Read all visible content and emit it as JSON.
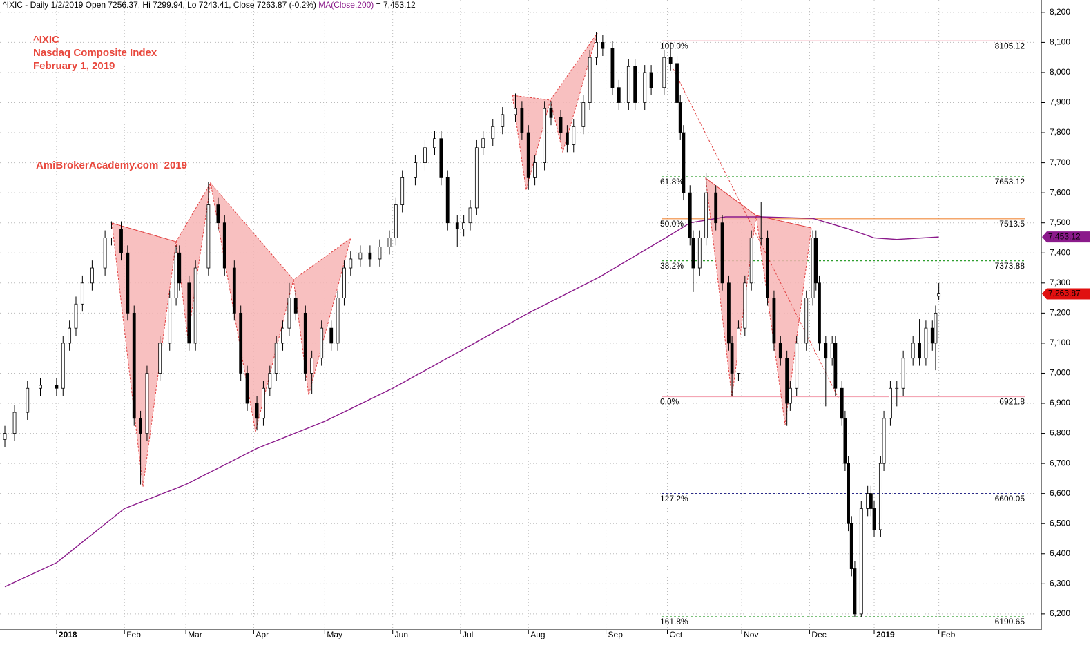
{
  "chart_data": {
    "type": "candlestick",
    "header": {
      "text": "^IXIC - Daily 1/2/2019 Open 7256.37, Hi 7299.94, Lo 7243.41, Close 7263.87 (-0.2%)",
      "ma_text": "MA(Close,200)",
      "ma_value_text": "= 7,453.12"
    },
    "annotations": [
      "^IXIC",
      "Nasdaq Composite Index",
      "February 1, 2019",
      "AmiBrokerAcademy.com  2019"
    ],
    "xlim": [
      -17.5,
      304.7
    ],
    "xticks": [
      {
        "value": 0,
        "label": "2018",
        "bold": true
      },
      {
        "value": 21,
        "label": "Feb"
      },
      {
        "value": 40,
        "label": "Mar"
      },
      {
        "value": 61,
        "label": "Apr"
      },
      {
        "value": 83,
        "label": "May"
      },
      {
        "value": 104,
        "label": "Jun"
      },
      {
        "value": 125,
        "label": "Jul"
      },
      {
        "value": 146,
        "label": "Aug"
      },
      {
        "value": 170,
        "label": "Sep"
      },
      {
        "value": 189,
        "label": "Oct"
      },
      {
        "value": 212,
        "label": "Nov"
      },
      {
        "value": 233,
        "label": "Dec"
      },
      {
        "value": 253,
        "label": "2019",
        "bold": true
      },
      {
        "value": 273,
        "label": "Feb"
      }
    ],
    "ylim": [
      6140,
      8241
    ],
    "yticks": [
      {
        "value": 6200,
        "label": "6,200"
      },
      {
        "value": 6300,
        "label": "6,300"
      },
      {
        "value": 6400,
        "label": "6,400"
      },
      {
        "value": 6500,
        "label": "6,500"
      },
      {
        "value": 6600,
        "label": "6,600"
      },
      {
        "value": 6700,
        "label": "6,700"
      },
      {
        "value": 6800,
        "label": "6,800"
      },
      {
        "value": 6900,
        "label": "6,900"
      },
      {
        "value": 7000,
        "label": "7,000"
      },
      {
        "value": 7100,
        "label": "7,100"
      },
      {
        "value": 7200,
        "label": "7,200"
      },
      {
        "value": 7300,
        "label": "7,300"
      },
      {
        "value": 7400,
        "label": "7,400"
      },
      {
        "value": 7500,
        "label": "7,500"
      },
      {
        "value": 7600,
        "label": "7,600"
      },
      {
        "value": 7700,
        "label": "7,700"
      },
      {
        "value": 7800,
        "label": "7,800"
      },
      {
        "value": 7900,
        "label": "7,900"
      },
      {
        "value": 8000,
        "label": "8,000"
      },
      {
        "value": 8100,
        "label": "8,100"
      },
      {
        "value": 8200,
        "label": "8,200"
      }
    ],
    "grid": true,
    "candles": {
      "up_color": "#ffffff",
      "down_color": "#000000",
      "x": [
        -16,
        -13,
        -9,
        -5,
        0,
        2,
        4,
        6,
        8,
        11,
        15,
        17,
        20,
        22,
        24,
        26,
        28,
        32,
        35,
        37,
        38,
        41,
        43,
        47,
        50,
        52,
        55,
        57,
        59,
        62,
        64,
        66,
        68,
        70,
        72,
        74,
        77,
        79,
        82,
        85,
        87,
        89,
        91,
        94,
        97,
        100,
        103,
        105,
        107,
        111,
        114,
        117,
        119,
        121,
        124,
        126,
        128,
        130,
        132,
        135,
        138,
        142,
        144,
        146,
        148,
        151,
        153,
        156,
        158,
        160,
        163,
        165,
        167,
        169,
        172,
        174,
        177,
        179,
        182,
        184,
        188,
        190,
        192,
        193,
        194,
        196,
        197,
        199,
        201,
        204,
        206,
        208,
        209,
        211,
        213,
        215,
        218,
        220,
        222,
        224,
        226,
        227,
        229,
        232,
        234,
        235,
        236,
        238,
        240,
        241,
        243,
        244,
        245,
        246,
        247,
        249,
        251,
        252,
        253,
        255,
        256,
        258,
        260,
        262,
        265,
        267,
        269,
        271,
        272,
        273
      ],
      "open": [
        6780,
        6800,
        6870,
        6950,
        6960,
        6950,
        7100,
        7150,
        7230,
        7300,
        7350,
        7450,
        7480,
        7400,
        7200,
        6850,
        6800,
        7000,
        7100,
        7250,
        7400,
        7300,
        7100,
        7350,
        7560,
        7500,
        7350,
        7200,
        7000,
        6900,
        6850,
        6950,
        7000,
        7100,
        7150,
        7250,
        7200,
        7000,
        7050,
        7150,
        7100,
        7250,
        7350,
        7380,
        7400,
        7380,
        7420,
        7450,
        7560,
        7650,
        7700,
        7750,
        7780,
        7650,
        7500,
        7480,
        7500,
        7550,
        7750,
        7780,
        7820,
        7860,
        7880,
        7800,
        7650,
        7700,
        7880,
        7850,
        7800,
        7760,
        7820,
        7900,
        8050,
        8100,
        8080,
        7950,
        7900,
        8020,
        7900,
        8000,
        7950,
        8050,
        8030,
        7900,
        7800,
        7600,
        7450,
        7350,
        7450,
        7600,
        7500,
        7300,
        7100,
        7000,
        7150,
        7300,
        7450,
        7450,
        7250,
        7100,
        7050,
        6900,
        6950,
        7100,
        7250,
        7450,
        7300,
        7100,
        7050,
        7100,
        6950,
        6850,
        6700,
        6500,
        6350,
        6200,
        6550,
        6600,
        6550,
        6480,
        6700,
        6850,
        6950,
        6950,
        7050,
        7100,
        7050,
        7150,
        7100,
        7256.37
      ],
      "high": [
        6825,
        6895,
        6975,
        6985,
        6985,
        7125,
        7175,
        7255,
        7325,
        7375,
        7475,
        7505,
        7505,
        7425,
        7225,
        6875,
        7025,
        7125,
        7275,
        7425,
        7425,
        7325,
        7375,
        7637,
        7585,
        7525,
        7375,
        7225,
        7025,
        6925,
        6975,
        7025,
        7125,
        7175,
        7300,
        7275,
        7225,
        7075,
        7175,
        7175,
        7275,
        7375,
        7405,
        7425,
        7425,
        7445,
        7475,
        7585,
        7675,
        7725,
        7775,
        7805,
        7805,
        7675,
        7525,
        7525,
        7575,
        7775,
        7805,
        7845,
        7885,
        7930,
        7905,
        7825,
        7725,
        7905,
        7905,
        7875,
        7825,
        7845,
        7925,
        8075,
        8133,
        8125,
        8105,
        7975,
        8045,
        8045,
        8025,
        8025,
        8075,
        8100,
        8055,
        7925,
        7825,
        7625,
        7475,
        7475,
        7665,
        7625,
        7525,
        7325,
        7125,
        7175,
        7325,
        7475,
        7570,
        7475,
        7275,
        7125,
        7075,
        6975,
        7125,
        7275,
        7475,
        7475,
        7325,
        7125,
        7125,
        7125,
        6975,
        6875,
        6725,
        6525,
        6375,
        6575,
        6625,
        6625,
        6575,
        6725,
        6875,
        6975,
        6975,
        7075,
        7125,
        7180,
        7175,
        7175,
        7225,
        7299.94
      ],
      "low": [
        6755,
        6775,
        6845,
        6925,
        6925,
        6925,
        7075,
        7125,
        7205,
        7275,
        7325,
        7425,
        7375,
        7175,
        6825,
        6630,
        6775,
        6975,
        7075,
        7225,
        7275,
        7075,
        7075,
        7325,
        7475,
        7325,
        7175,
        6975,
        6875,
        6810,
        6825,
        6925,
        6975,
        7075,
        7125,
        7175,
        6975,
        6930,
        7025,
        7075,
        7075,
        7225,
        7325,
        7355,
        7355,
        7355,
        7395,
        7425,
        7535,
        7625,
        7675,
        7725,
        7625,
        7475,
        7420,
        7455,
        7475,
        7525,
        7725,
        7755,
        7795,
        7835,
        7775,
        7610,
        7625,
        7675,
        7825,
        7775,
        7735,
        7735,
        7795,
        7875,
        8025,
        8055,
        7925,
        7875,
        7875,
        7875,
        7875,
        7925,
        7925,
        8005,
        7875,
        7775,
        7575,
        7425,
        7270,
        7325,
        7425,
        7475,
        7275,
        7075,
        6925,
        6975,
        7125,
        7275,
        7425,
        7225,
        7075,
        7025,
        6825,
        6875,
        6925,
        7075,
        7225,
        7275,
        7075,
        6890,
        7025,
        6925,
        6825,
        6675,
        6475,
        6325,
        6190,
        6190,
        6525,
        6525,
        6455,
        6455,
        6675,
        6825,
        6890,
        6925,
        7025,
        7025,
        7025,
        7075,
        7010,
        7243.41
      ],
      "close": [
        6800,
        6870,
        6950,
        6960,
        6950,
        7100,
        7150,
        7230,
        7300,
        7350,
        7450,
        7480,
        7400,
        7200,
        6850,
        6800,
        7000,
        7100,
        7250,
        7400,
        7300,
        7100,
        7350,
        7560,
        7500,
        7350,
        7200,
        7000,
        6900,
        6850,
        6950,
        7000,
        7100,
        7150,
        7250,
        7200,
        7000,
        7050,
        7150,
        7100,
        7250,
        7350,
        7380,
        7400,
        7380,
        7420,
        7450,
        7560,
        7650,
        7700,
        7750,
        7780,
        7650,
        7500,
        7480,
        7500,
        7550,
        7750,
        7780,
        7820,
        7860,
        7880,
        7800,
        7650,
        7700,
        7880,
        7850,
        7800,
        7760,
        7820,
        7900,
        8050,
        8100,
        8080,
        7950,
        7900,
        8020,
        7900,
        8000,
        7950,
        8050,
        8030,
        7900,
        7800,
        7600,
        7450,
        7350,
        7450,
        7600,
        7500,
        7300,
        7100,
        7000,
        7150,
        7300,
        7450,
        7450,
        7250,
        7100,
        7050,
        6900,
        6950,
        7100,
        7250,
        7450,
        7300,
        7100,
        7050,
        7100,
        6950,
        6850,
        6700,
        6500,
        6350,
        6200,
        6550,
        6600,
        6550,
        6480,
        6700,
        6850,
        6950,
        6950,
        7050,
        7100,
        7050,
        7150,
        7100,
        7200,
        7263.87
      ]
    },
    "ma": {
      "color": "#8b1a8b",
      "x": [
        -16,
        0,
        21,
        40,
        62,
        83,
        104,
        126,
        146,
        168,
        190,
        196,
        207,
        218,
        234,
        245,
        253,
        260,
        273
      ],
      "values": [
        6290,
        6370,
        6550,
        6630,
        6750,
        6840,
        6950,
        7080,
        7200,
        7320,
        7460,
        7500,
        7520,
        7520,
        7515,
        7480,
        7450,
        7445,
        7453.12
      ]
    },
    "fib_levels": [
      {
        "label": "100.0%",
        "value": 8105.12,
        "color": "#f4a6b4",
        "dashed": false
      },
      {
        "label": "61.8%",
        "value": 7653.12,
        "color": "#2e9e2e",
        "dashed": true
      },
      {
        "label": "50.0%",
        "value": 7513.5,
        "color": "#f08a3c",
        "dashed": false
      },
      {
        "label": "38.2%",
        "value": 7373.88,
        "color": "#2e9e2e",
        "dashed": true
      },
      {
        "label": "0.0%",
        "value": 6921.8,
        "color": "#f4a6b4",
        "dashed": false
      },
      {
        "label": "127.2%",
        "value": 6600.05,
        "color": "#2b2b8a",
        "dashed": true
      },
      {
        "label": "161.8%",
        "value": 6190.65,
        "color": "#2e9e2e",
        "dashed": true
      }
    ],
    "price_tags": [
      {
        "value": 7453.12,
        "label": "7,453.12",
        "color": "#8b1a8b"
      },
      {
        "value": 7263.87,
        "label": "7,263.87",
        "color": "#e01010"
      }
    ]
  }
}
